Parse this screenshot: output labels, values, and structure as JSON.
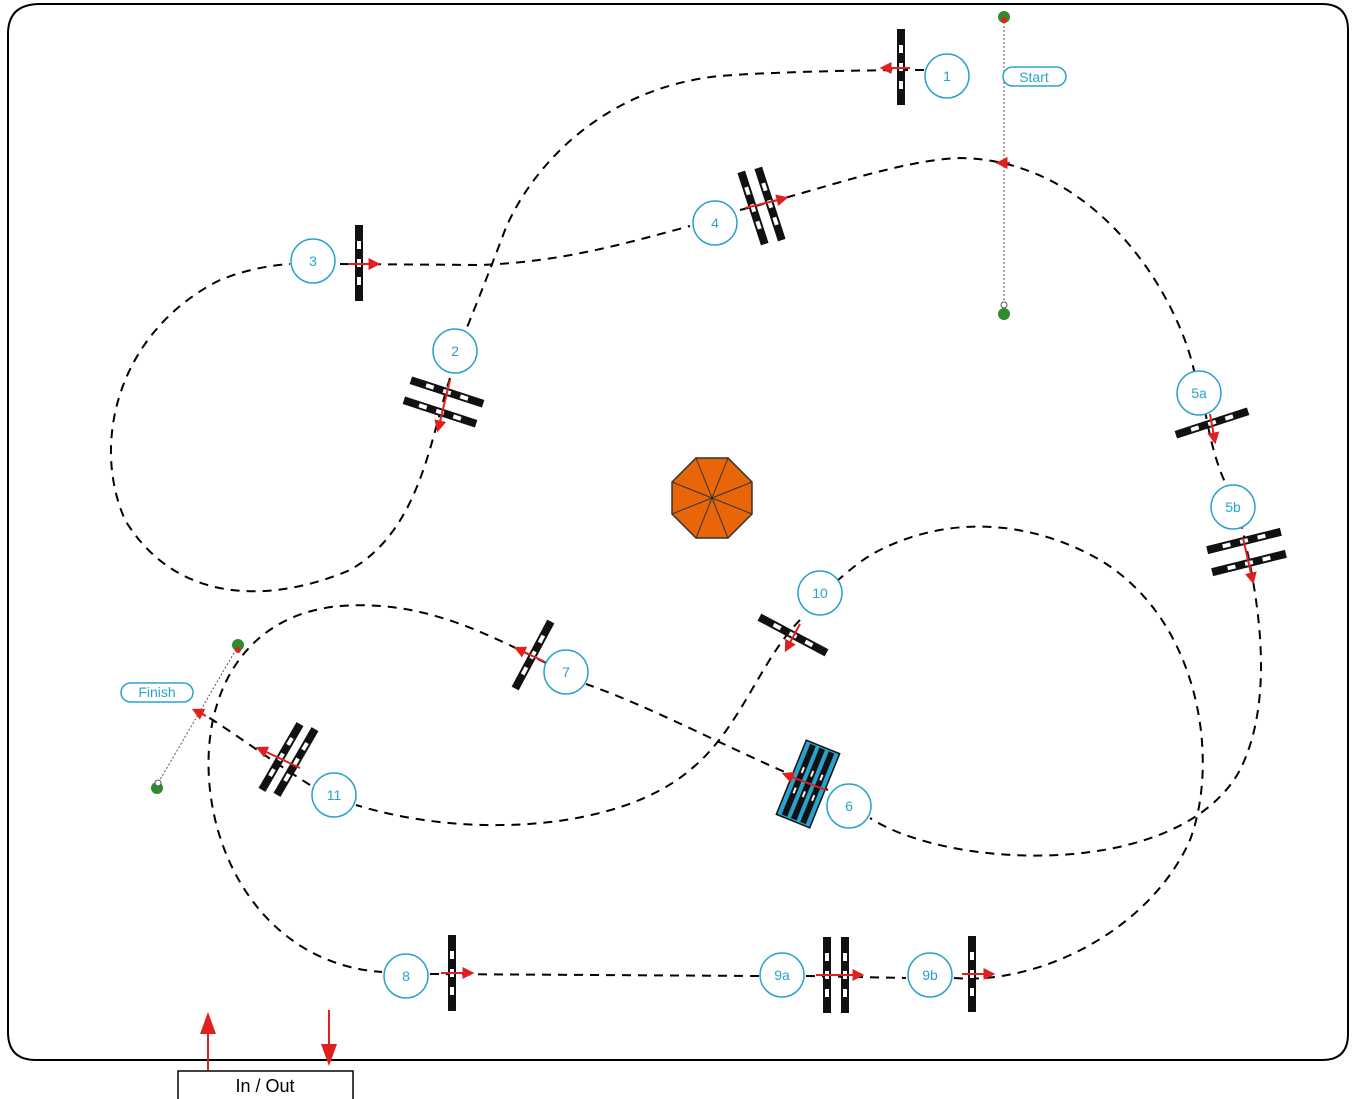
{
  "labels": {
    "start": "Start",
    "finish": "Finish",
    "in_out": "In / Out"
  },
  "jumps": [
    {
      "id": "1",
      "label": "1"
    },
    {
      "id": "2",
      "label": "2"
    },
    {
      "id": "3",
      "label": "3"
    },
    {
      "id": "4",
      "label": "4"
    },
    {
      "id": "5a",
      "label": "5a"
    },
    {
      "id": "5b",
      "label": "5b"
    },
    {
      "id": "6",
      "label": "6"
    },
    {
      "id": "7",
      "label": "7"
    },
    {
      "id": "8",
      "label": "8"
    },
    {
      "id": "9a",
      "label": "9a"
    },
    {
      "id": "9b",
      "label": "9b"
    },
    {
      "id": "10",
      "label": "10"
    },
    {
      "id": "11",
      "label": "11"
    }
  ],
  "colors": {
    "accent": "#29a3cc",
    "arrow": "#e02020",
    "rail": "#111111",
    "water_jump": "#29a3cc",
    "umbrella": "#e8650a",
    "flag_green": "#2e8b2e"
  },
  "icons": {
    "center_decoration": "octagon-umbrella-icon",
    "start_flag": "flag-icon",
    "finish_flag": "flag-icon"
  }
}
